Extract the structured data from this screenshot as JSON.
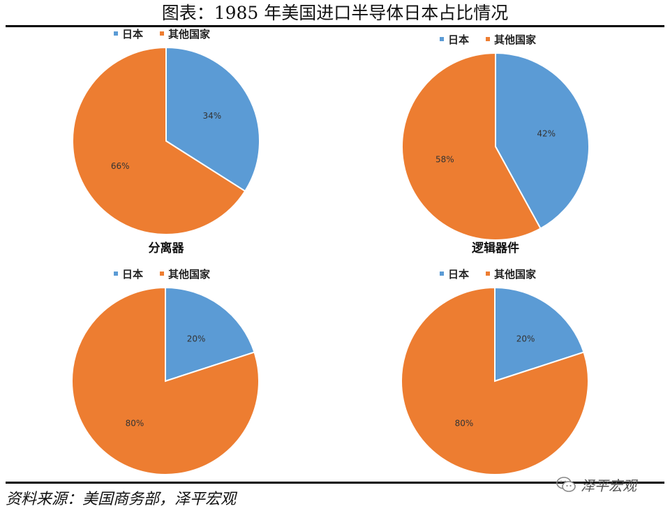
{
  "figure_title": "图表：1985 年美国进口半导体日本占比情况",
  "source_note": "资料来源：美国商务部，泽平宏观",
  "watermark": "泽平宏观",
  "colors": {
    "japan": "#5b9bd5",
    "others": "#ed7d31"
  },
  "legend": [
    "日本",
    "其他国家"
  ],
  "chart_data": [
    {
      "type": "pie",
      "title": "分离器",
      "series": [
        {
          "name": "日本",
          "value": 34,
          "label": "34%"
        },
        {
          "name": "其他国家",
          "value": 66,
          "label": "66%"
        }
      ]
    },
    {
      "type": "pie",
      "title": "逻辑器件",
      "series": [
        {
          "name": "日本",
          "value": 42,
          "label": "42%"
        },
        {
          "name": "其他国家",
          "value": 58,
          "label": "58%"
        }
      ]
    },
    {
      "type": "pie",
      "title": "",
      "series": [
        {
          "name": "日本",
          "value": 20,
          "label": "20%"
        },
        {
          "name": "其他国家",
          "value": 80,
          "label": "80%"
        }
      ]
    },
    {
      "type": "pie",
      "title": "",
      "series": [
        {
          "name": "日本",
          "value": 20,
          "label": "20%"
        },
        {
          "name": "其他国家",
          "value": 80,
          "label": "80%"
        }
      ]
    }
  ]
}
